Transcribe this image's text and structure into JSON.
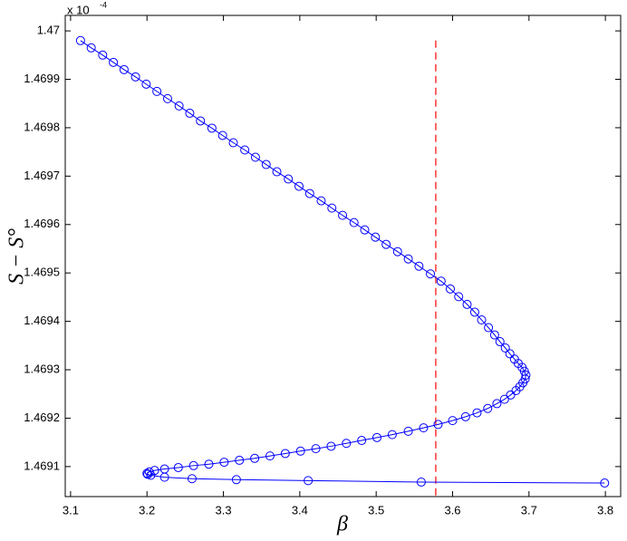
{
  "chart_data": {
    "type": "line",
    "x_label": "β",
    "y_label": "S − S°",
    "y_multiplier": {
      "base": "x 10",
      "exponent": "-4"
    },
    "xlim": [
      3.093,
      3.82
    ],
    "ylim": [
      1.469038,
      1.470032
    ],
    "xticks": [
      3.1,
      3.2,
      3.3,
      3.4,
      3.5,
      3.6,
      3.7,
      3.8
    ],
    "yticks": [
      1.4691,
      1.4692,
      1.4693,
      1.4694,
      1.4695,
      1.4696,
      1.4697,
      1.4698,
      1.4699,
      1.47
    ],
    "grid": false,
    "marker": "circle",
    "vline": {
      "x": 3.578,
      "color": "#ff0000",
      "style": "dashed"
    },
    "series": [
      {
        "color": "#0000ff",
        "x": [
          3.113,
          3.127,
          3.142,
          3.156,
          3.17,
          3.185,
          3.199,
          3.213,
          3.227,
          3.242,
          3.256,
          3.27,
          3.285,
          3.299,
          3.313,
          3.328,
          3.342,
          3.356,
          3.37,
          3.385,
          3.399,
          3.413,
          3.428,
          3.442,
          3.456,
          3.471,
          3.485,
          3.499,
          3.513,
          3.528,
          3.542,
          3.556,
          3.571,
          3.585,
          3.597,
          3.608,
          3.619,
          3.629,
          3.638,
          3.647,
          3.655,
          3.662,
          3.669,
          3.675,
          3.681,
          3.686,
          3.691,
          3.694,
          3.696,
          3.695,
          3.692,
          3.688,
          3.683,
          3.676,
          3.668,
          3.658,
          3.646,
          3.632,
          3.617,
          3.6,
          3.581,
          3.562,
          3.542,
          3.521,
          3.501,
          3.481,
          3.461,
          3.441,
          3.421,
          3.401,
          3.381,
          3.361,
          3.341,
          3.321,
          3.301,
          3.281,
          3.261,
          3.241,
          3.223,
          3.21,
          3.203,
          3.2,
          3.201,
          3.205,
          3.223,
          3.259,
          3.317,
          3.411,
          3.559,
          3.799
        ],
        "values": [
          1.46998,
          1.469965,
          1.46995,
          1.469935,
          1.46992,
          1.469905,
          1.46989,
          1.469875,
          1.46986,
          1.469845,
          1.46983,
          1.469814,
          1.469799,
          1.469784,
          1.469769,
          1.469754,
          1.469739,
          1.469724,
          1.469709,
          1.469694,
          1.469679,
          1.469664,
          1.469649,
          1.469634,
          1.469619,
          1.469604,
          1.469589,
          1.469574,
          1.469559,
          1.469544,
          1.469529,
          1.469514,
          1.469498,
          1.469483,
          1.469467,
          1.469451,
          1.469435,
          1.469419,
          1.469403,
          1.469387,
          1.469372,
          1.469358,
          1.469345,
          1.469333,
          1.469322,
          1.469313,
          1.469305,
          1.469297,
          1.469289,
          1.469281,
          1.469273,
          1.469265,
          1.469257,
          1.469248,
          1.469239,
          1.46923,
          1.46922,
          1.469211,
          1.469203,
          1.469195,
          1.469187,
          1.46918,
          1.469173,
          1.469166,
          1.46916,
          1.469154,
          1.469148,
          1.469142,
          1.469137,
          1.469132,
          1.469127,
          1.469122,
          1.469117,
          1.469113,
          1.469109,
          1.469105,
          1.469102,
          1.469098,
          1.469095,
          1.469092,
          1.469089,
          1.469086,
          1.469084,
          1.469082,
          1.469078,
          1.469075,
          1.469073,
          1.469071,
          1.469068,
          1.469066
        ]
      }
    ]
  }
}
